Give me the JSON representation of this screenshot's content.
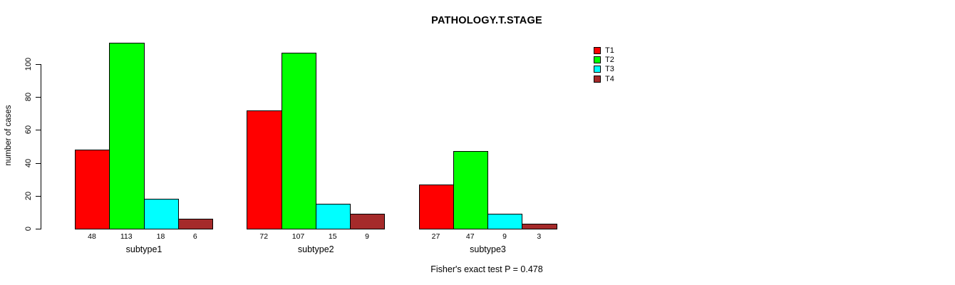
{
  "title": "PATHOLOGY.T.STAGE",
  "chart_data": {
    "type": "bar",
    "grouped": true,
    "categories": [
      "subtype1",
      "subtype2",
      "subtype3"
    ],
    "series": [
      {
        "name": "T1",
        "color": "#ff0000",
        "values": [
          48,
          72,
          27
        ]
      },
      {
        "name": "T2",
        "color": "#00ff00",
        "values": [
          113,
          107,
          47
        ]
      },
      {
        "name": "T3",
        "color": "#00ffff",
        "values": [
          18,
          15,
          9
        ]
      },
      {
        "name": "T4",
        "color": "#a52a2a",
        "values": [
          6,
          9,
          3
        ]
      }
    ],
    "title": "PATHOLOGY.T.STAGE",
    "xlabel": "",
    "ylabel": "number of cases",
    "yticks": [
      0,
      20,
      40,
      60,
      80,
      100
    ],
    "ylim": [
      0,
      113
    ],
    "grid": false,
    "legend_position": "right",
    "bar_value_labels_shown": true,
    "annotation": "Fisher's exact test P = 0.478"
  },
  "colors": {
    "background": "#ffffff",
    "axis": "#000000",
    "text": "#000000"
  }
}
